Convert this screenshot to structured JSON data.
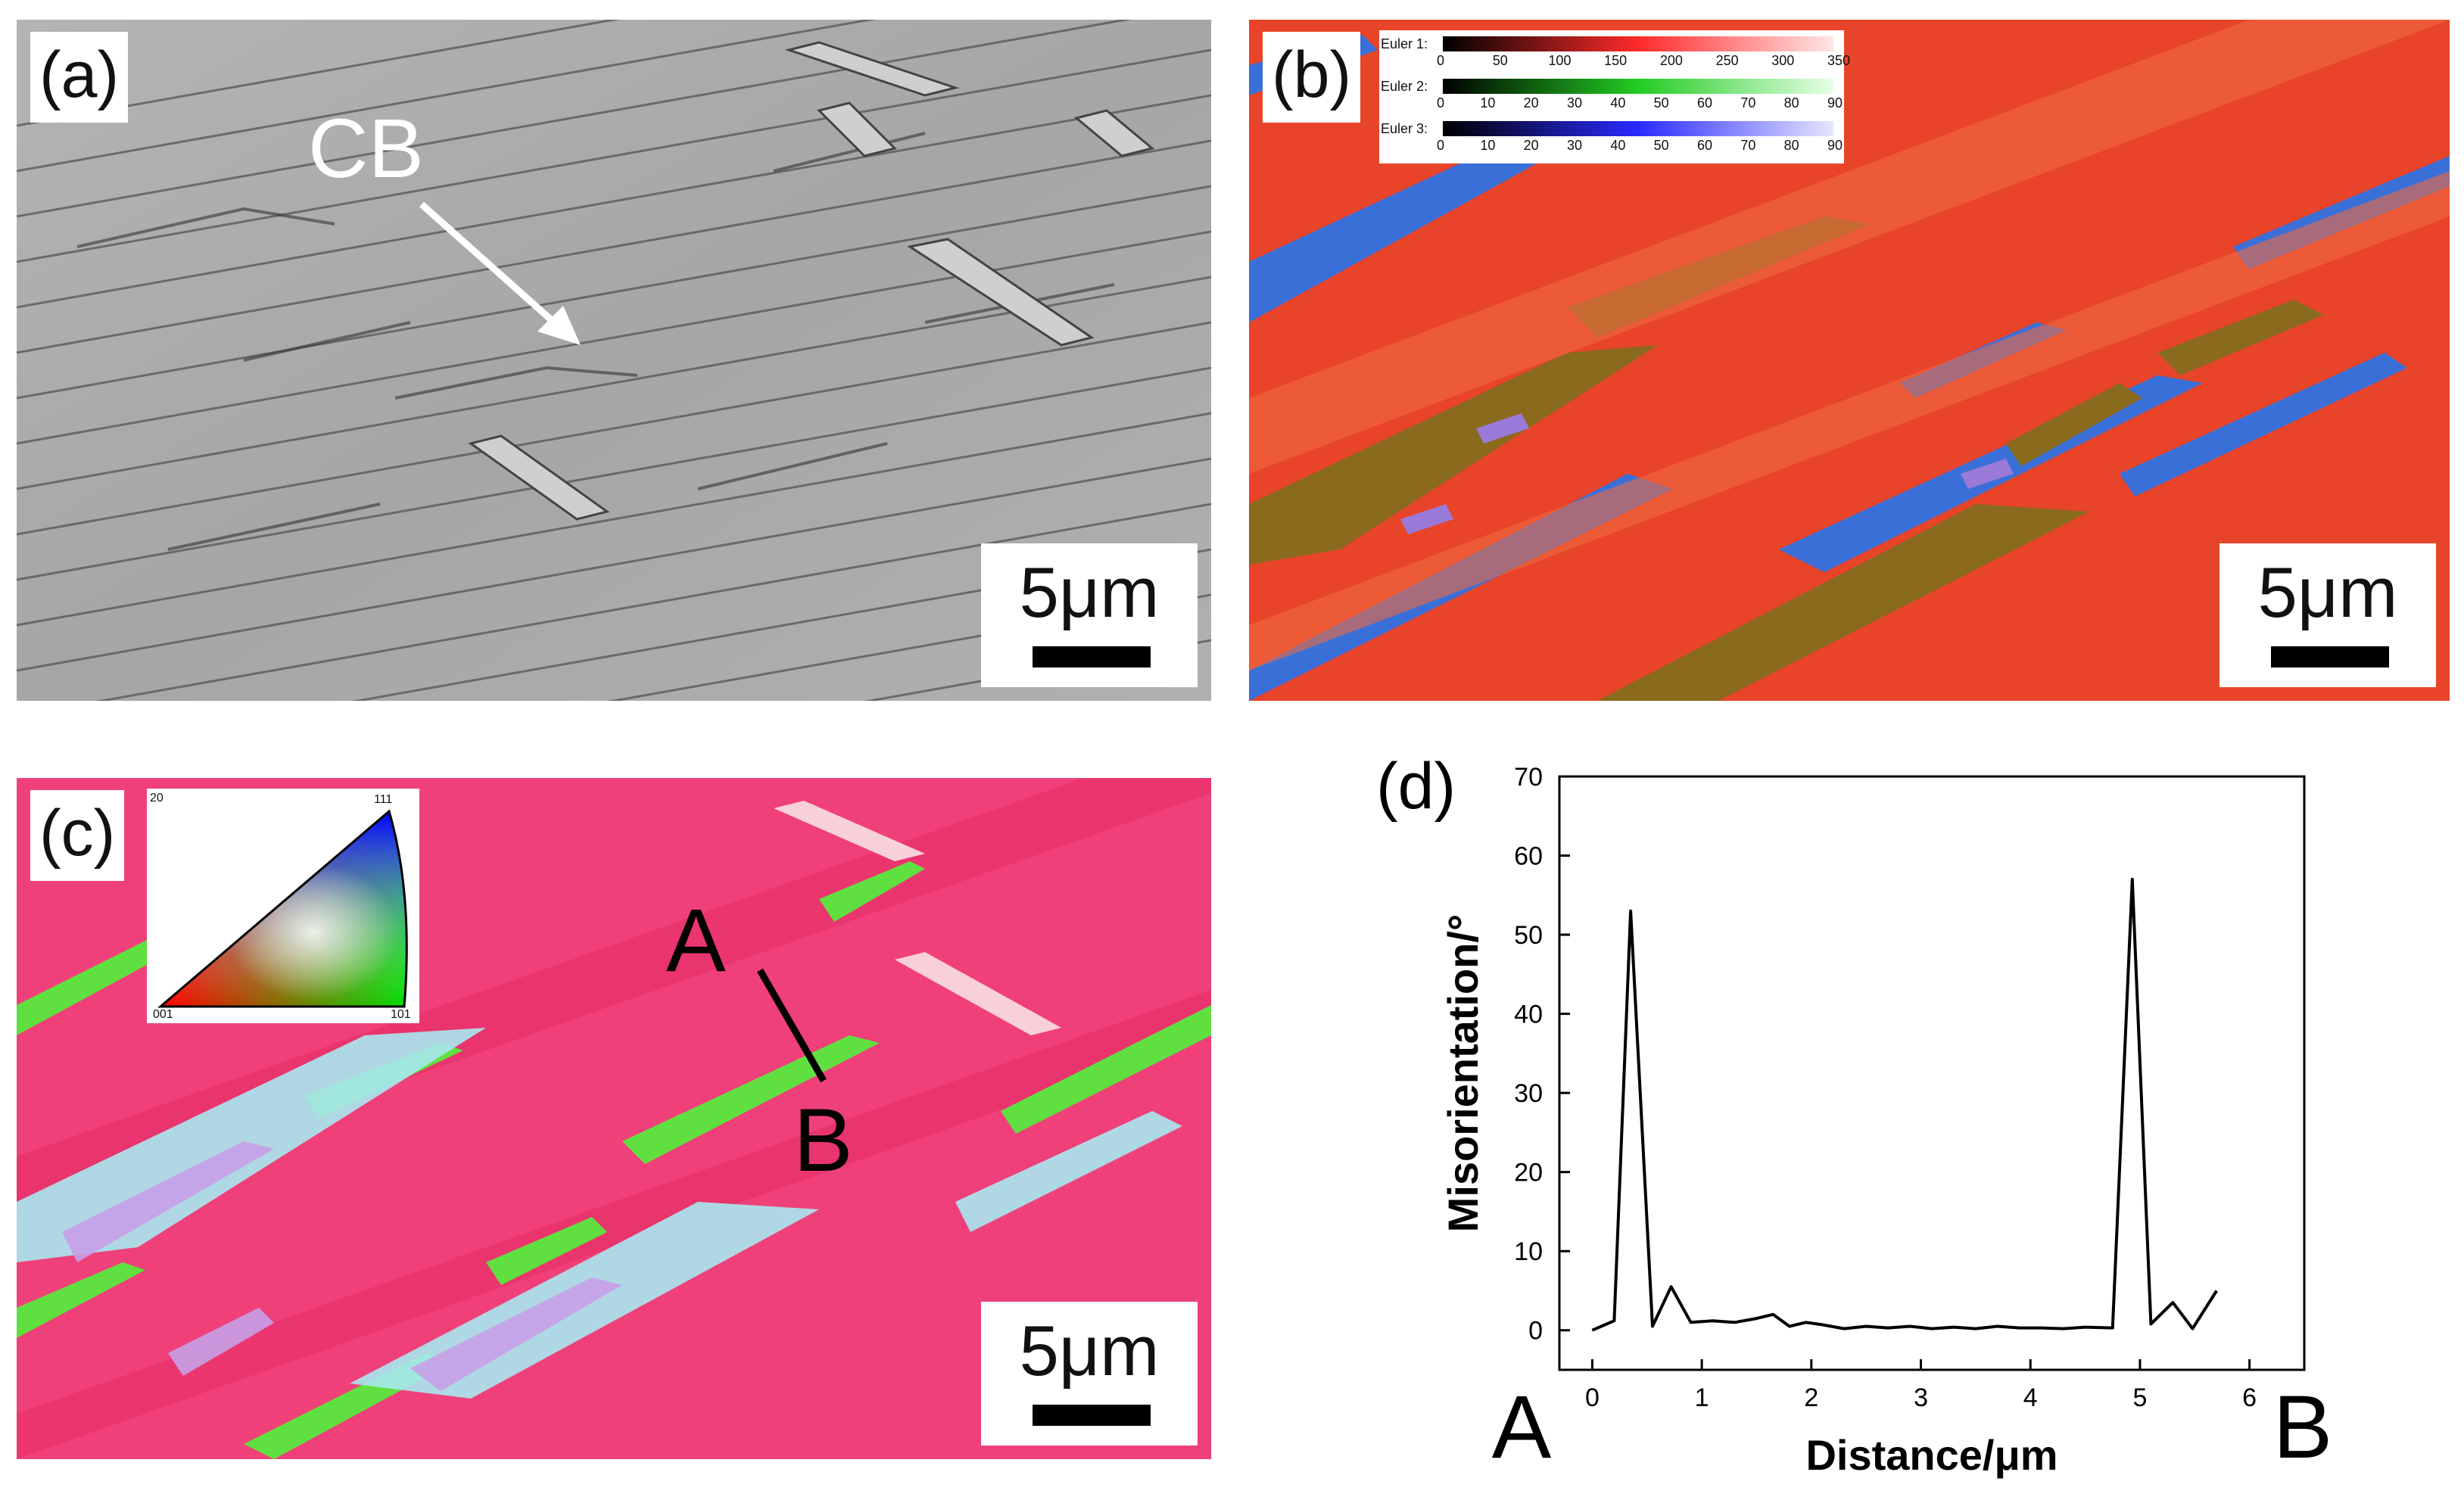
{
  "panels": {
    "a": {
      "label": "(a)",
      "annotation": "CB",
      "scale": "5μm"
    },
    "b": {
      "label": "(b)",
      "scale": "5μm",
      "legend": {
        "euler1": {
          "name": "Euler 1:",
          "ticks": [
            "0",
            "50",
            "100",
            "150",
            "200",
            "250",
            "300",
            "350"
          ]
        },
        "euler2": {
          "name": "Euler 2:",
          "ticks": [
            "0",
            "10",
            "20",
            "30",
            "40",
            "50",
            "60",
            "70",
            "80",
            "90"
          ]
        },
        "euler3": {
          "name": "Euler 3:",
          "ticks": [
            "0",
            "10",
            "20",
            "30",
            "40",
            "50",
            "60",
            "70",
            "80",
            "90"
          ]
        }
      }
    },
    "c": {
      "label": "(c)",
      "scale": "5μm",
      "point_a": "A",
      "point_b": "B",
      "ipf": {
        "max": "20",
        "corner_111": "111",
        "corner_001": "001",
        "corner_101": "101"
      }
    }
  },
  "colors": {
    "euler_red": "#e8442a",
    "euler_blue": "#3a6fd8",
    "euler_olive": "#8a6a1c",
    "ipf_pink": "#f0407a",
    "ipf_green": "#60e040"
  },
  "chart_data": {
    "type": "line",
    "panel_label": "(d)",
    "xlabel": "Distance/μm",
    "ylabel": "Misorientation/°",
    "end_label_left": "A",
    "end_label_right": "B",
    "xlim": [
      -0.3,
      6.5
    ],
    "ylim": [
      -5,
      70
    ],
    "xticks": [
      0,
      1,
      2,
      3,
      4,
      5,
      6
    ],
    "yticks": [
      0,
      10,
      20,
      30,
      40,
      50,
      60,
      70
    ],
    "x": [
      0,
      0.2,
      0.35,
      0.55,
      0.72,
      0.9,
      1.1,
      1.3,
      1.5,
      1.65,
      1.8,
      1.95,
      2.1,
      2.3,
      2.5,
      2.7,
      2.9,
      3.1,
      3.3,
      3.5,
      3.7,
      3.9,
      4.1,
      4.3,
      4.5,
      4.75,
      4.93,
      5.1,
      5.3,
      5.48,
      5.7
    ],
    "y": [
      0,
      1.2,
      53,
      0.5,
      5.5,
      1,
      1.2,
      1,
      1.5,
      2,
      0.5,
      1,
      0.7,
      0.2,
      0.5,
      0.3,
      0.5,
      0.2,
      0.4,
      0.2,
      0.5,
      0.3,
      0.3,
      0.2,
      0.4,
      0.3,
      57,
      0.8,
      3.5,
      0.2,
      5
    ]
  }
}
